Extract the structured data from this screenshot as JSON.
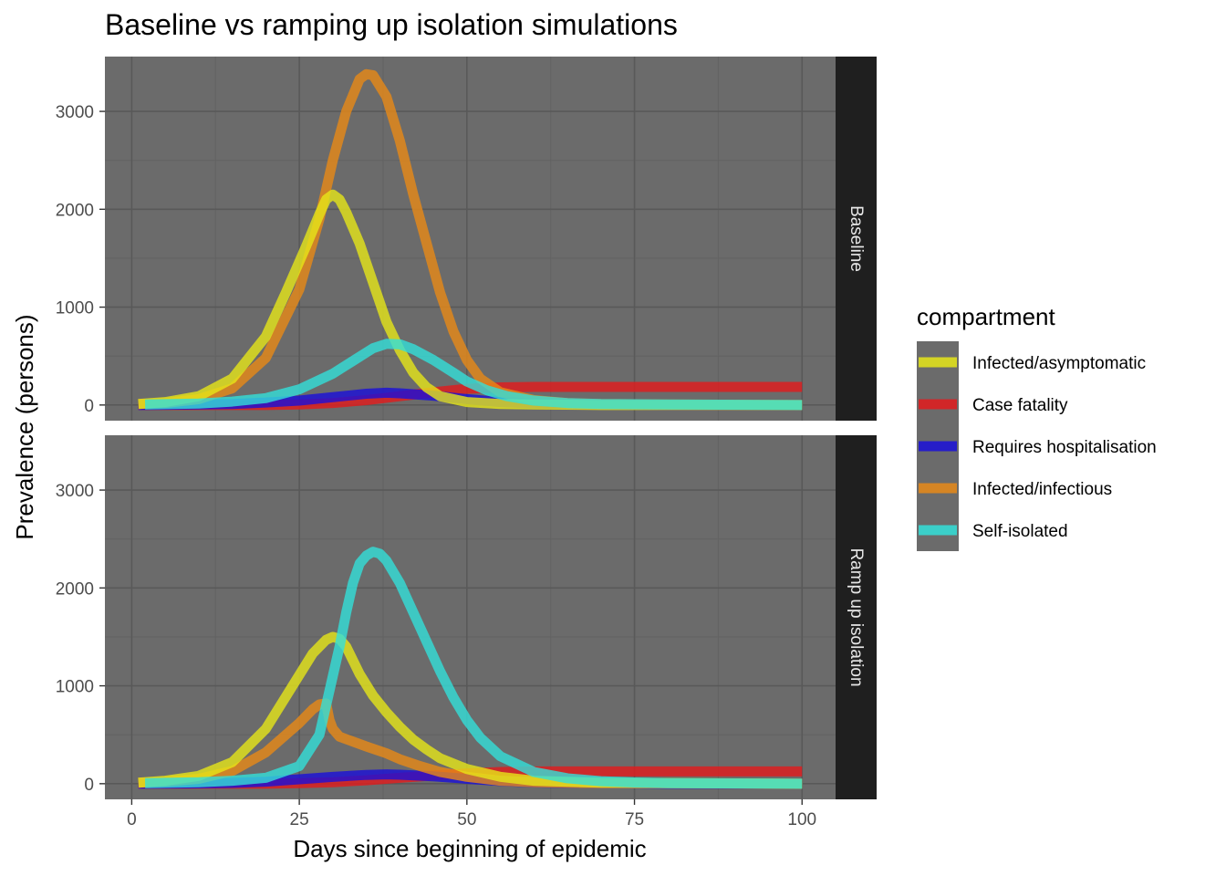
{
  "chart_data": {
    "type": "line",
    "title": "Baseline vs ramping up isolation simulations",
    "xlabel": "Days since beginning of epidemic",
    "ylabel": "Prevalence (persons)",
    "xlim": [
      -4,
      105
    ],
    "ylim": [
      -160,
      3560
    ],
    "x_ticks": [
      0,
      25,
      50,
      75,
      100
    ],
    "y_ticks": [
      0,
      1000,
      2000,
      3000
    ],
    "grid": true,
    "panel_background": "#6b6b6b",
    "strip_background": "#1f1f1f",
    "legend": {
      "title": "compartment",
      "placement": "right",
      "background": "#6b6b6b",
      "entries": [
        {
          "name": "Infected/asymptomatic",
          "color": "#e6e619"
        },
        {
          "name": "Case fatality",
          "color": "#e31a1c"
        },
        {
          "name": "Requires hospitalisation",
          "color": "#1a0fd9"
        },
        {
          "name": "Infected/infectious",
          "color": "#e88a17"
        },
        {
          "name": "Self-isolated",
          "color": "#33e0d9"
        }
      ]
    },
    "panels": [
      {
        "strip": "Baseline",
        "series": [
          {
            "name": "Case fatality",
            "color": "#e31a1c",
            "points": [
              [
                1,
                0
              ],
              [
                10,
                0
              ],
              [
                20,
                0
              ],
              [
                25,
                5
              ],
              [
                30,
                20
              ],
              [
                35,
                50
              ],
              [
                40,
                90
              ],
              [
                45,
                130
              ],
              [
                50,
                165
              ],
              [
                55,
                180
              ],
              [
                60,
                185
              ],
              [
                70,
                185
              ],
              [
                80,
                185
              ],
              [
                90,
                185
              ],
              [
                100,
                185
              ]
            ]
          },
          {
            "name": "Requires hospitalisation",
            "color": "#1a0fd9",
            "points": [
              [
                1,
                0
              ],
              [
                10,
                5
              ],
              [
                15,
                10
              ],
              [
                20,
                25
              ],
              [
                25,
                45
              ],
              [
                30,
                80
              ],
              [
                35,
                115
              ],
              [
                38,
                125
              ],
              [
                40,
                120
              ],
              [
                45,
                95
              ],
              [
                50,
                60
              ],
              [
                55,
                30
              ],
              [
                60,
                15
              ],
              [
                70,
                5
              ],
              [
                80,
                0
              ],
              [
                100,
                0
              ]
            ]
          },
          {
            "name": "Infected/infectious",
            "color": "#e88a17",
            "points": [
              [
                1,
                10
              ],
              [
                5,
                20
              ],
              [
                10,
                60
              ],
              [
                15,
                170
              ],
              [
                20,
                480
              ],
              [
                25,
                1180
              ],
              [
                28,
                1900
              ],
              [
                30,
                2500
              ],
              [
                32,
                3000
              ],
              [
                34,
                3330
              ],
              [
                35,
                3380
              ],
              [
                36,
                3370
              ],
              [
                38,
                3150
              ],
              [
                40,
                2700
              ],
              [
                42,
                2150
              ],
              [
                44,
                1650
              ],
              [
                46,
                1150
              ],
              [
                48,
                750
              ],
              [
                50,
                460
              ],
              [
                52,
                270
              ],
              [
                55,
                130
              ],
              [
                60,
                50
              ],
              [
                65,
                20
              ],
              [
                70,
                10
              ],
              [
                80,
                5
              ],
              [
                100,
                0
              ]
            ]
          },
          {
            "name": "Infected/asymptomatic",
            "color": "#e6e619",
            "points": [
              [
                1,
                10
              ],
              [
                5,
                30
              ],
              [
                10,
                90
              ],
              [
                15,
                270
              ],
              [
                20,
                700
              ],
              [
                23,
                1150
              ],
              [
                26,
                1620
              ],
              [
                28,
                1950
              ],
              [
                29,
                2100
              ],
              [
                30,
                2150
              ],
              [
                31,
                2100
              ],
              [
                32,
                1970
              ],
              [
                34,
                1650
              ],
              [
                36,
                1250
              ],
              [
                38,
                850
              ],
              [
                40,
                560
              ],
              [
                42,
                330
              ],
              [
                44,
                180
              ],
              [
                46,
                90
              ],
              [
                50,
                30
              ],
              [
                55,
                10
              ],
              [
                60,
                5
              ],
              [
                70,
                0
              ],
              [
                100,
                0
              ]
            ]
          },
          {
            "name": "Self-isolated",
            "color": "#33e0d9",
            "points": [
              [
                2,
                5
              ],
              [
                10,
                15
              ],
              [
                15,
                35
              ],
              [
                20,
                70
              ],
              [
                25,
                160
              ],
              [
                30,
                320
              ],
              [
                33,
                450
              ],
              [
                36,
                580
              ],
              [
                38,
                625
              ],
              [
                40,
                620
              ],
              [
                42,
                570
              ],
              [
                45,
                460
              ],
              [
                48,
                330
              ],
              [
                50,
                240
              ],
              [
                53,
                150
              ],
              [
                56,
                90
              ],
              [
                60,
                45
              ],
              [
                65,
                20
              ],
              [
                70,
                10
              ],
              [
                80,
                5
              ],
              [
                100,
                0
              ]
            ]
          }
        ]
      },
      {
        "strip": "Ramp up isolation",
        "series": [
          {
            "name": "Case fatality",
            "color": "#e31a1c",
            "points": [
              [
                1,
                0
              ],
              [
                10,
                0
              ],
              [
                20,
                0
              ],
              [
                25,
                5
              ],
              [
                30,
                15
              ],
              [
                35,
                35
              ],
              [
                40,
                60
              ],
              [
                45,
                85
              ],
              [
                50,
                105
              ],
              [
                55,
                120
              ],
              [
                60,
                125
              ],
              [
                70,
                125
              ],
              [
                80,
                125
              ],
              [
                90,
                125
              ],
              [
                100,
                125
              ]
            ]
          },
          {
            "name": "Requires hospitalisation",
            "color": "#1a0fd9",
            "points": [
              [
                1,
                0
              ],
              [
                10,
                3
              ],
              [
                15,
                8
              ],
              [
                20,
                20
              ],
              [
                25,
                45
              ],
              [
                30,
                70
              ],
              [
                35,
                90
              ],
              [
                38,
                95
              ],
              [
                40,
                92
              ],
              [
                45,
                75
              ],
              [
                50,
                50
              ],
              [
                55,
                28
              ],
              [
                60,
                12
              ],
              [
                70,
                5
              ],
              [
                80,
                0
              ],
              [
                100,
                0
              ]
            ]
          },
          {
            "name": "Infected/infectious",
            "color": "#e88a17",
            "points": [
              [
                1,
                10
              ],
              [
                5,
                20
              ],
              [
                10,
                50
              ],
              [
                15,
                130
              ],
              [
                20,
                320
              ],
              [
                25,
                620
              ],
              [
                27,
                760
              ],
              [
                28,
                810
              ],
              [
                29,
                820
              ],
              [
                29.5,
                650
              ],
              [
                30,
                560
              ],
              [
                31,
                480
              ],
              [
                33,
                430
              ],
              [
                35,
                380
              ],
              [
                38,
                310
              ],
              [
                40,
                250
              ],
              [
                43,
                180
              ],
              [
                46,
                120
              ],
              [
                50,
                70
              ],
              [
                55,
                30
              ],
              [
                60,
                15
              ],
              [
                70,
                5
              ],
              [
                100,
                0
              ]
            ]
          },
          {
            "name": "Infected/asymptomatic",
            "color": "#e6e619",
            "points": [
              [
                1,
                10
              ],
              [
                5,
                30
              ],
              [
                10,
                80
              ],
              [
                15,
                220
              ],
              [
                20,
                560
              ],
              [
                24,
                1000
              ],
              [
                27,
                1330
              ],
              [
                29,
                1470
              ],
              [
                30,
                1500
              ],
              [
                31,
                1480
              ],
              [
                32,
                1400
              ],
              [
                34,
                1120
              ],
              [
                36,
                900
              ],
              [
                38,
                730
              ],
              [
                40,
                580
              ],
              [
                42,
                450
              ],
              [
                44,
                350
              ],
              [
                46,
                260
              ],
              [
                50,
                150
              ],
              [
                55,
                70
              ],
              [
                60,
                30
              ],
              [
                70,
                10
              ],
              [
                100,
                0
              ]
            ]
          },
          {
            "name": "Self-isolated",
            "color": "#33e0d9",
            "points": [
              [
                2,
                5
              ],
              [
                10,
                15
              ],
              [
                15,
                30
              ],
              [
                20,
                60
              ],
              [
                25,
                180
              ],
              [
                28,
                500
              ],
              [
                30,
                1100
              ],
              [
                31,
                1400
              ],
              [
                32,
                1750
              ],
              [
                33,
                2050
              ],
              [
                34,
                2250
              ],
              [
                35,
                2330
              ],
              [
                36,
                2370
              ],
              [
                37,
                2350
              ],
              [
                38,
                2280
              ],
              [
                40,
                2050
              ],
              [
                42,
                1750
              ],
              [
                44,
                1450
              ],
              [
                46,
                1150
              ],
              [
                48,
                880
              ],
              [
                50,
                650
              ],
              [
                52,
                470
              ],
              [
                55,
                280
              ],
              [
                60,
                120
              ],
              [
                65,
                55
              ],
              [
                70,
                25
              ],
              [
                75,
                12
              ],
              [
                80,
                6
              ],
              [
                100,
                0
              ]
            ]
          }
        ]
      }
    ]
  }
}
